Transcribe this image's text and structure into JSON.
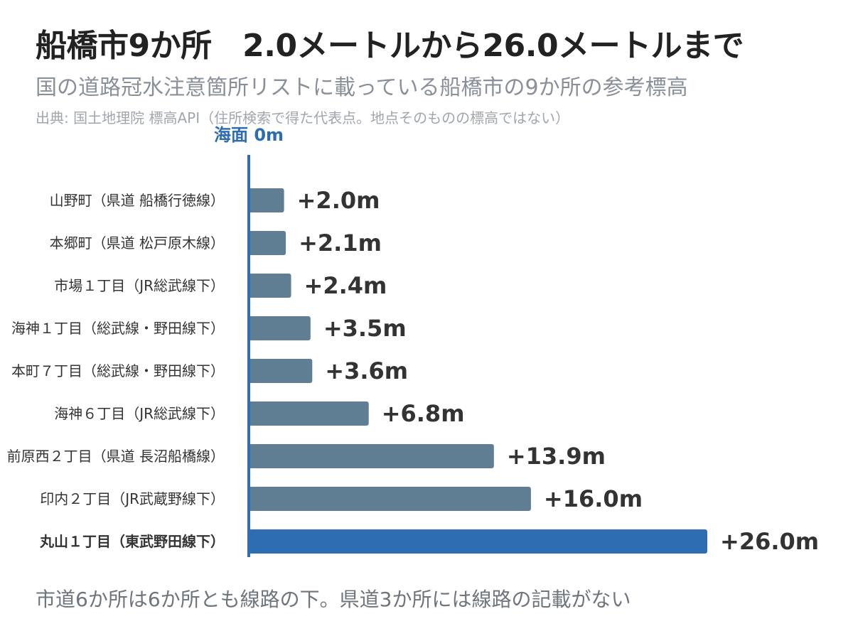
{
  "title": "船橋市9か所　2.0メートルから26.0メートルまで",
  "subtitle": "国の道路冠水注意箇所リストに載っている船橋市の9か所の参考標高",
  "source": "出典: 国土地理院 標高API（住所検索で得た代表点。地点そのものの標高ではない）",
  "footer": "市道6か所は6か所とも線路の下。県道3か所には線路の記載がない",
  "colors": {
    "bar": "#5f7d93",
    "highlight": "#2f6db3",
    "axis": "#2f6db3",
    "label": "#333333",
    "value": "#333333"
  },
  "chart_data": {
    "type": "bar",
    "orientation": "horizontal",
    "baseline_label": "海面 0m",
    "value_prefix": "+",
    "value_suffix": "m",
    "xlim": [
      0,
      26
    ],
    "categories": [
      "山野町（県道 船橋行徳線）",
      "本郷町（県道 松戸原木線）",
      "市場１丁目（JR総武線下）",
      "海神１丁目（総武線・野田線下）",
      "本町７丁目（総武線・野田線下）",
      "海神６丁目（JR総武線下）",
      "前原西２丁目（県道 長沼船橋線）",
      "印内２丁目（JR武蔵野線下）",
      "丸山１丁目（東武野田線下）"
    ],
    "values": [
      2.0,
      2.1,
      2.4,
      3.5,
      3.6,
      6.8,
      13.9,
      16.0,
      26.0
    ],
    "value_labels": [
      "+2.0m",
      "+2.1m",
      "+2.4m",
      "+3.5m",
      "+3.6m",
      "+6.8m",
      "+13.9m",
      "+16.0m",
      "+26.0m"
    ],
    "highlight_index": 8
  }
}
